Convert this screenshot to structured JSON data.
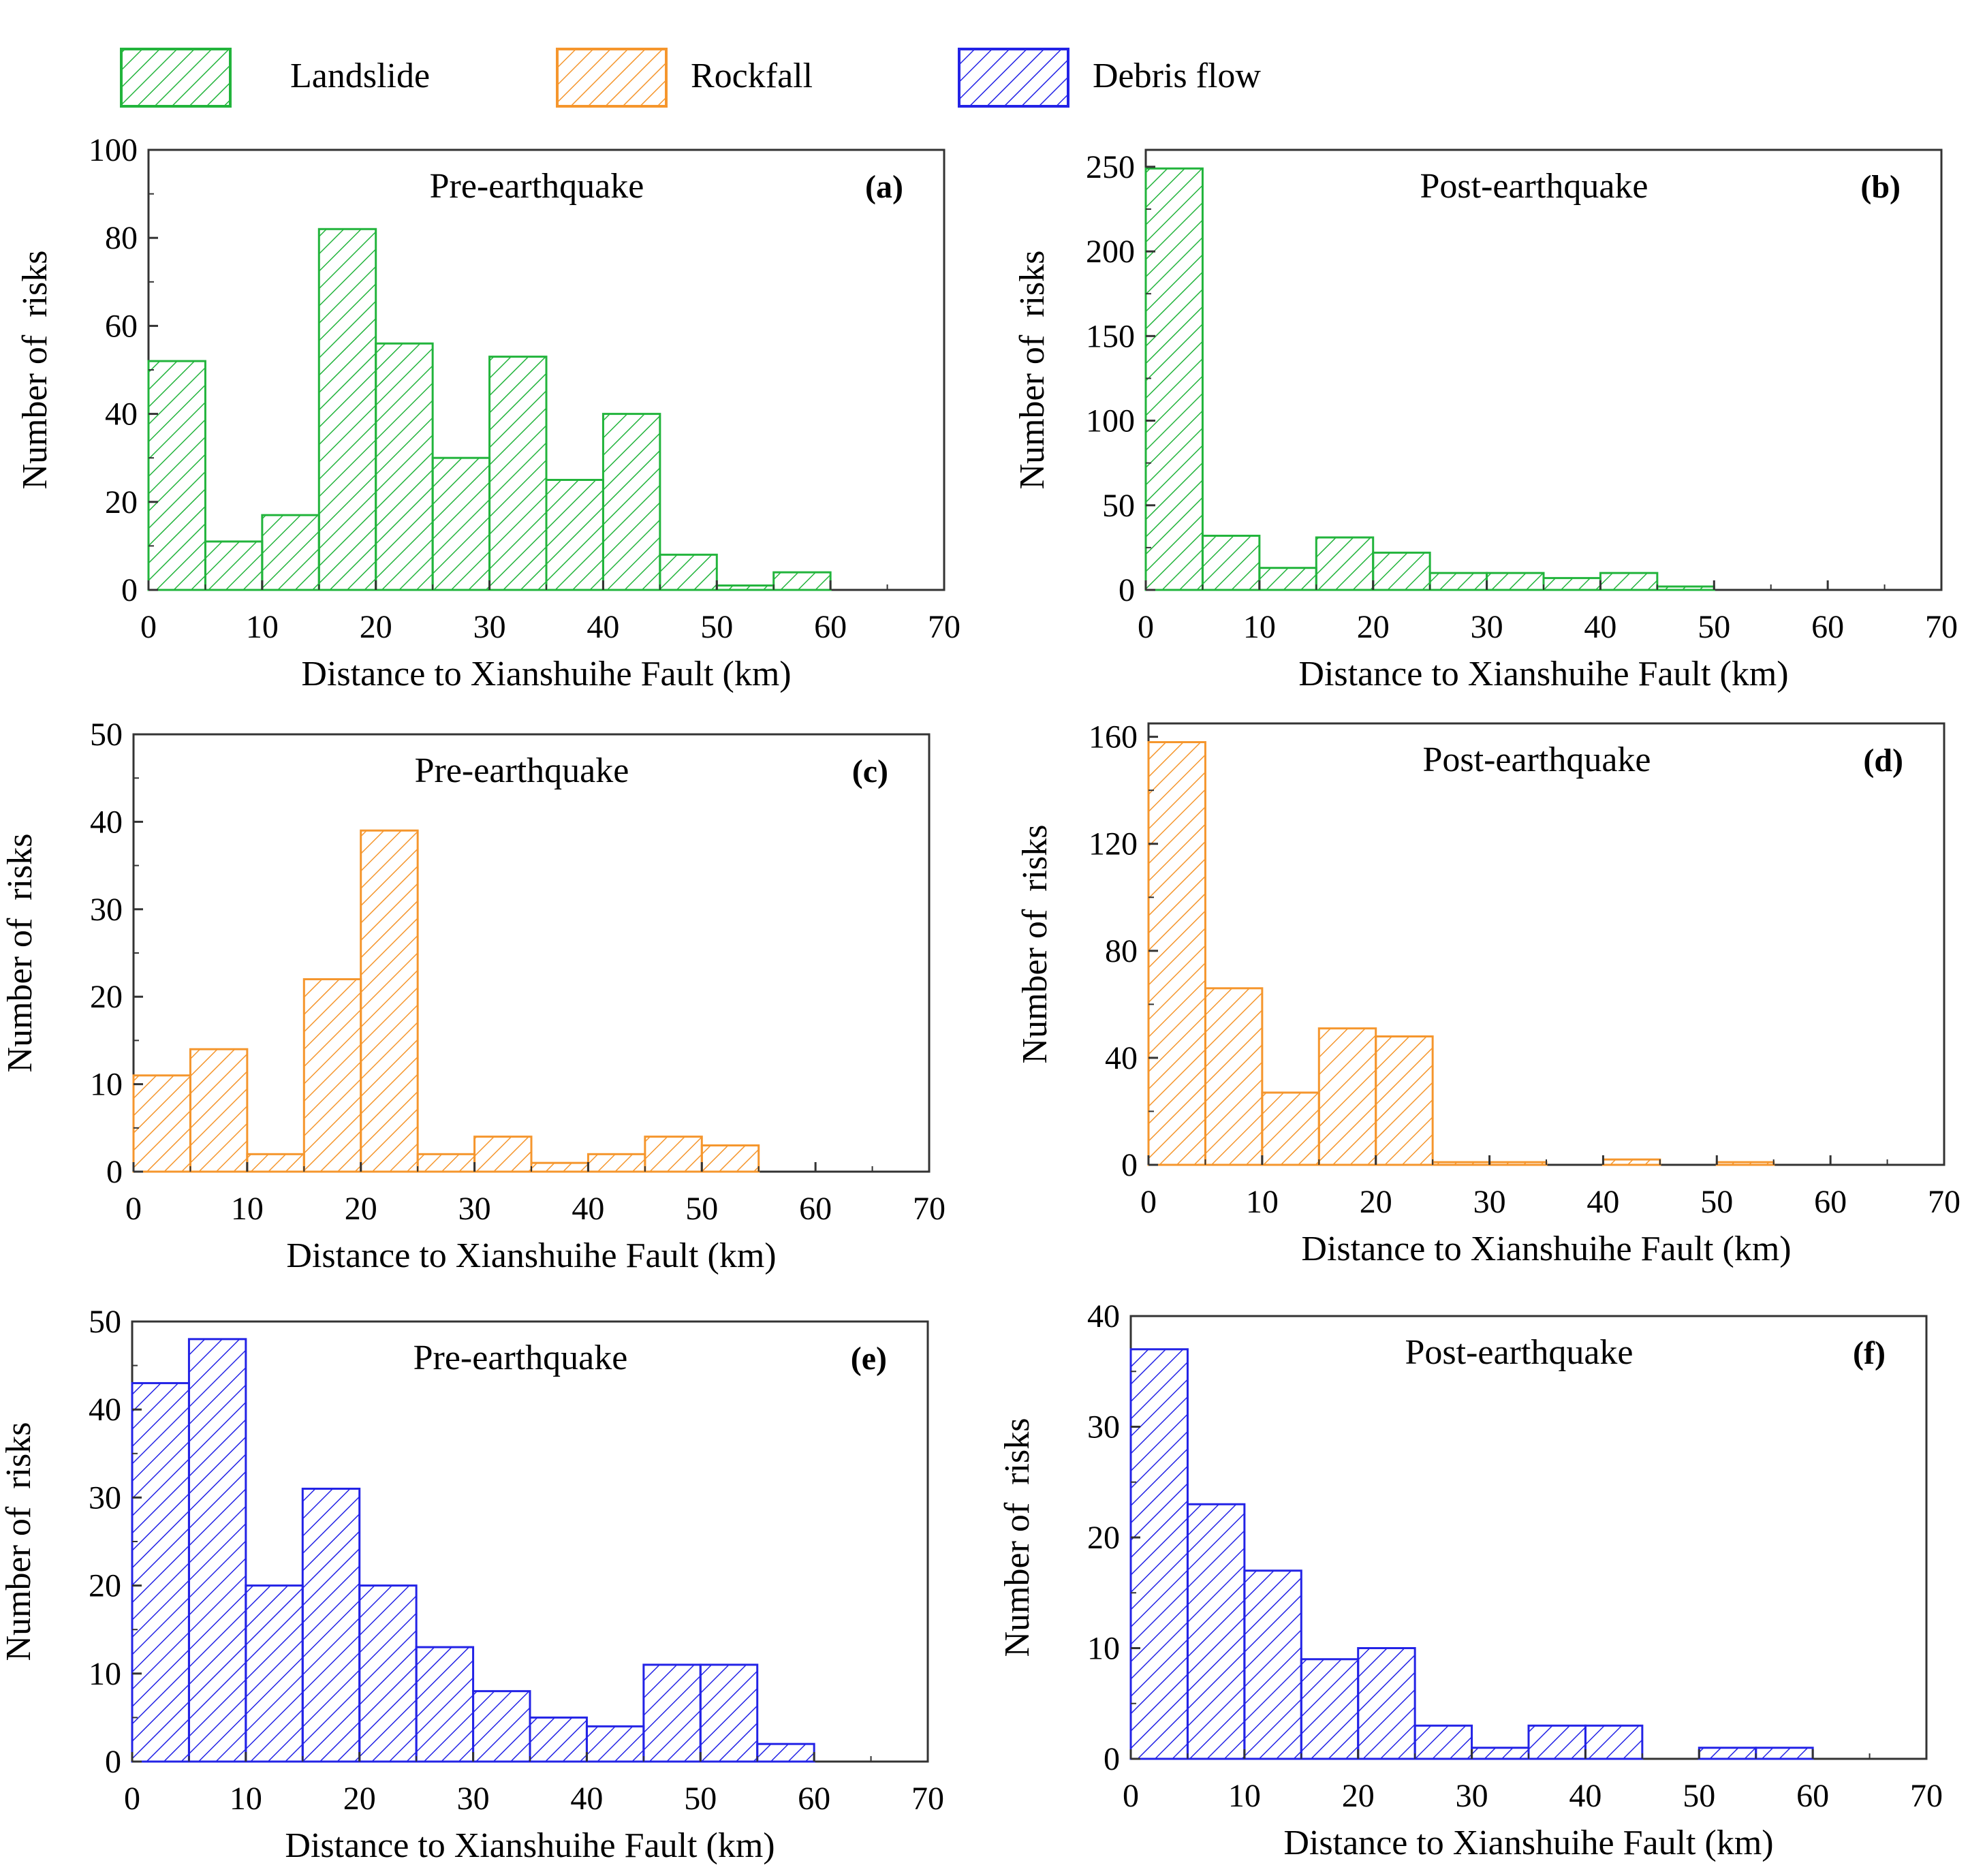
{
  "legend": [
    {
      "label": "Landslide",
      "color": "#22b43c",
      "pattern": "hatch-green"
    },
    {
      "label": "Rockfall",
      "color": "#f5962d",
      "pattern": "hatch-orange"
    },
    {
      "label": "Debris flow",
      "color": "#2323e6",
      "pattern": "hatch-blue"
    }
  ],
  "chart_data": [
    {
      "id": "a",
      "type": "bar",
      "letter": "(a)",
      "title": "Pre-earthquake",
      "series_name": "Landslide",
      "color": "#22b43c",
      "pattern": "hatch-green",
      "bin_width": 5,
      "bins_start": [
        0,
        5,
        10,
        15,
        20,
        25,
        30,
        35,
        40,
        45,
        50,
        55
      ],
      "values": [
        52,
        11,
        17,
        82,
        56,
        30,
        53,
        25,
        40,
        8,
        1,
        4
      ],
      "xlim": [
        0,
        70
      ],
      "ylim": [
        0,
        100
      ],
      "xticks": [
        0,
        10,
        20,
        30,
        40,
        50,
        60,
        70
      ],
      "yticks": [
        0,
        20,
        40,
        60,
        80,
        100
      ],
      "xlabel": "Distance to Xianshuihe Fault (km)",
      "ylabel": "Number of  risks"
    },
    {
      "id": "b",
      "type": "bar",
      "letter": "(b)",
      "title": "Post-earthquake",
      "series_name": "Landslide",
      "color": "#22b43c",
      "pattern": "hatch-green",
      "bin_width": 5,
      "bins_start": [
        0,
        5,
        10,
        15,
        20,
        25,
        30,
        35,
        40,
        45
      ],
      "values": [
        249,
        32,
        13,
        31,
        22,
        10,
        10,
        7,
        10,
        2
      ],
      "xlim": [
        0,
        70
      ],
      "ylim": [
        0,
        260
      ],
      "xticks": [
        0,
        10,
        20,
        30,
        40,
        50,
        60,
        70
      ],
      "yticks": [
        0,
        50,
        100,
        150,
        200,
        250
      ],
      "xlabel": "Distance to Xianshuihe Fault (km)",
      "ylabel": "Number of  risks"
    },
    {
      "id": "c",
      "type": "bar",
      "letter": "(c)",
      "title": "Pre-earthquake",
      "series_name": "Rockfall",
      "color": "#f5962d",
      "pattern": "hatch-orange",
      "bin_width": 5,
      "bins_start": [
        0,
        5,
        10,
        15,
        20,
        25,
        30,
        35,
        40,
        45,
        50
      ],
      "values": [
        11,
        14,
        2,
        22,
        39,
        2,
        4,
        1,
        2,
        4,
        3
      ],
      "xlim": [
        0,
        70
      ],
      "ylim": [
        0,
        50
      ],
      "xticks": [
        0,
        10,
        20,
        30,
        40,
        50,
        60,
        70
      ],
      "yticks": [
        0,
        10,
        20,
        30,
        40,
        50
      ],
      "xlabel": "Distance to Xianshuihe Fault (km)",
      "ylabel": "Number of  risks"
    },
    {
      "id": "d",
      "type": "bar",
      "letter": "(d)",
      "title": "Post-earthquake",
      "series_name": "Rockfall",
      "color": "#f5962d",
      "pattern": "hatch-orange",
      "bin_width": 5,
      "bins_start": [
        0,
        5,
        10,
        15,
        20,
        25,
        30,
        40,
        50
      ],
      "values": [
        158,
        66,
        27,
        51,
        48,
        1,
        1,
        2,
        1
      ],
      "xlim": [
        0,
        70
      ],
      "ylim": [
        0,
        165
      ],
      "xticks": [
        0,
        10,
        20,
        30,
        40,
        50,
        60,
        70
      ],
      "yticks": [
        0,
        40,
        80,
        120,
        160
      ],
      "xlabel": "Distance to Xianshuihe Fault (km)",
      "ylabel": "Number of  risks"
    },
    {
      "id": "e",
      "type": "bar",
      "letter": "(e)",
      "title": "Pre-earthquake",
      "series_name": "Debris flow",
      "color": "#2323e6",
      "pattern": "hatch-blue",
      "bin_width": 5,
      "bins_start": [
        0,
        5,
        10,
        15,
        20,
        25,
        30,
        35,
        40,
        45,
        50,
        55
      ],
      "values": [
        43,
        48,
        20,
        31,
        20,
        13,
        8,
        5,
        4,
        11,
        11,
        2
      ],
      "xlim": [
        0,
        70
      ],
      "ylim": [
        0,
        50
      ],
      "xticks": [
        0,
        10,
        20,
        30,
        40,
        50,
        60,
        70
      ],
      "yticks": [
        0,
        10,
        20,
        30,
        40,
        50
      ],
      "xlabel": "Distance to Xianshuihe Fault (km)",
      "ylabel": "Number of  risks"
    },
    {
      "id": "f",
      "type": "bar",
      "letter": "(f)",
      "title": "Post-earthquake",
      "series_name": "Debris flow",
      "color": "#2323e6",
      "pattern": "hatch-blue",
      "bin_width": 5,
      "bins_start": [
        0,
        5,
        10,
        15,
        20,
        25,
        30,
        35,
        40,
        50,
        55
      ],
      "values": [
        37,
        23,
        17,
        9,
        10,
        3,
        1,
        3,
        3,
        1,
        1
      ],
      "xlim": [
        0,
        70
      ],
      "ylim": [
        0,
        40
      ],
      "xticks": [
        0,
        10,
        20,
        30,
        40,
        50,
        60,
        70
      ],
      "yticks": [
        0,
        10,
        20,
        30,
        40
      ],
      "xlabel": "Distance to Xianshuihe Fault (km)",
      "ylabel": "Number of  risks"
    }
  ]
}
